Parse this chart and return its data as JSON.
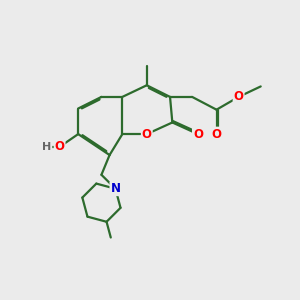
{
  "background_color": "#ebebeb",
  "bond_color": "#2d6b2d",
  "bond_width": 1.6,
  "atom_colors": {
    "O": "#ff0000",
    "N": "#0000cc",
    "H": "#666666",
    "C": "#2d6b2d"
  }
}
